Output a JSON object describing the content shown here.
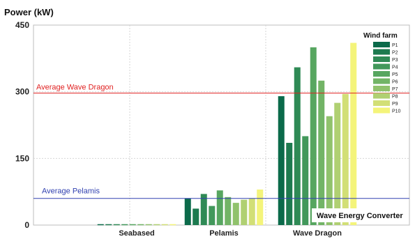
{
  "chart_data": {
    "type": "bar",
    "ylabel": "Power (kW)",
    "xlabel": "Wave Energy Converter",
    "ylim": [
      0,
      450
    ],
    "yticks": [
      0,
      150,
      300,
      450
    ],
    "categories": [
      "Seabased",
      "Pelamis",
      "Wave Dragon"
    ],
    "legend_title": "Wind farm",
    "legend_position": "top-right",
    "grid": true,
    "series": [
      {
        "name": "P1",
        "color": "#0b6a4a",
        "values": [
          2,
          60,
          290
        ]
      },
      {
        "name": "P2",
        "color": "#1d7a4f",
        "values": [
          2,
          37,
          185
        ]
      },
      {
        "name": "P3",
        "color": "#2f8a55",
        "values": [
          2,
          70,
          355
        ]
      },
      {
        "name": "P4",
        "color": "#42985b",
        "values": [
          2,
          43,
          200
        ]
      },
      {
        "name": "P5",
        "color": "#57a660",
        "values": [
          2,
          78,
          400
        ]
      },
      {
        "name": "P6",
        "color": "#72b466",
        "values": [
          2,
          63,
          325
        ]
      },
      {
        "name": "P7",
        "color": "#90c26c",
        "values": [
          2,
          50,
          245
        ]
      },
      {
        "name": "P8",
        "color": "#b0d072",
        "values": [
          2,
          57,
          275
        ]
      },
      {
        "name": "P9",
        "color": "#d2df76",
        "values": [
          2,
          60,
          295
        ]
      },
      {
        "name": "P10",
        "color": "#f4f47a",
        "values": [
          2,
          80,
          410
        ]
      }
    ],
    "reference_lines": [
      {
        "label": "Average Wave Dragon",
        "value": 297,
        "color": "#e02020"
      },
      {
        "label": "Average Pelamis",
        "value": 60,
        "color": "#3040b0"
      }
    ]
  }
}
